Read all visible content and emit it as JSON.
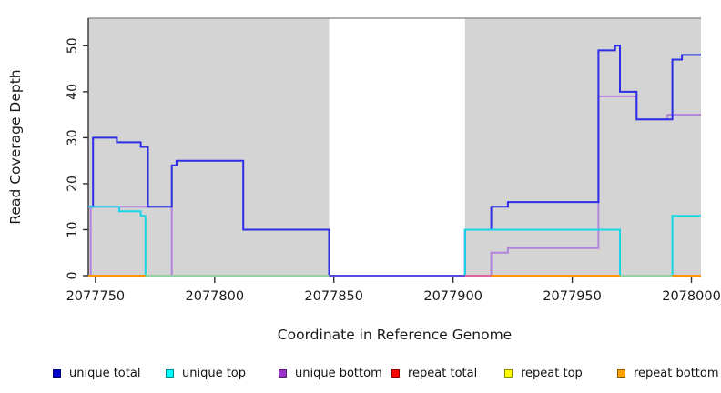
{
  "y_axis": {
    "label": "Read Coverage Depth",
    "ticks": [
      0,
      10,
      20,
      30,
      40,
      50
    ]
  },
  "x_axis": {
    "label": "Coordinate in Reference Genome",
    "ticks": [
      2077750,
      2077800,
      2077850,
      2077900,
      2077950,
      2078000
    ]
  },
  "legend": {
    "items": [
      {
        "label": "unique total",
        "color": "#0000cc"
      },
      {
        "label": "unique top",
        "color": "#00ffff"
      },
      {
        "label": "unique bottom",
        "color": "#9933cc"
      },
      {
        "label": "repeat total",
        "color": "#ff0000"
      },
      {
        "label": "repeat top",
        "color": "#ffff00"
      },
      {
        "label": "repeat bottom",
        "color": "#ffa200"
      }
    ]
  },
  "colors": {
    "plot_background_shaded": "#d4d4d4",
    "plot_background_gap": "#ffffff",
    "plot_top_border": "#808080",
    "axis_line": "#333333",
    "tick_label": "#1a1a1a"
  },
  "chart_data": {
    "type": "line",
    "step": true,
    "title": "",
    "xlabel": "Coordinate in Reference Genome",
    "ylabel": "Read Coverage Depth",
    "xlim": [
      2077747,
      2078004
    ],
    "ylim": [
      0,
      56
    ],
    "grid": false,
    "legend_position": "bottom",
    "shaded_regions": [
      {
        "x1": 2077747,
        "x2": 2077848
      },
      {
        "x1": 2077905,
        "x2": 2078004
      }
    ],
    "gap_region": {
      "x1": 2077848,
      "x2": 2077905
    },
    "series": [
      {
        "name": "repeat total",
        "color": "#ff0000",
        "steps": [
          [
            2077747,
            0
          ]
        ]
      },
      {
        "name": "repeat top",
        "color": "#ffff00",
        "steps": [
          [
            2077747,
            0
          ]
        ]
      },
      {
        "name": "repeat bottom",
        "color": "#ff9500",
        "steps": [
          [
            2077747,
            0
          ]
        ]
      },
      {
        "name": "unique bottom",
        "color": "#b183dd",
        "steps": [
          [
            2077747,
            0
          ],
          [
            2077748,
            15
          ],
          [
            2077782,
            0
          ],
          [
            2077916,
            5
          ],
          [
            2077923,
            6
          ],
          [
            2077961,
            39
          ],
          [
            2077977,
            34
          ],
          [
            2077990,
            35
          ]
        ]
      },
      {
        "name": "unique total",
        "color": "#2d2de8",
        "steps": [
          [
            2077747,
            15
          ],
          [
            2077749,
            30
          ],
          [
            2077759,
            29
          ],
          [
            2077769,
            28
          ],
          [
            2077772,
            15
          ],
          [
            2077782,
            24
          ],
          [
            2077784,
            25
          ],
          [
            2077812,
            10
          ],
          [
            2077848,
            0
          ],
          [
            2077905,
            10
          ],
          [
            2077916,
            15
          ],
          [
            2077923,
            16
          ],
          [
            2077961,
            49
          ],
          [
            2077968,
            50
          ],
          [
            2077970,
            40
          ],
          [
            2077977,
            34
          ],
          [
            2077992,
            47
          ],
          [
            2077996,
            48
          ]
        ]
      },
      {
        "name": "unique top",
        "color": "#18d6e6",
        "steps": [
          [
            2077747,
            15
          ],
          [
            2077760,
            14
          ],
          [
            2077769,
            13
          ],
          [
            2077771,
            0
          ],
          [
            2077905,
            10
          ],
          [
            2077970,
            0
          ],
          [
            2077992,
            13
          ]
        ]
      }
    ],
    "zero_line_segments": [
      {
        "x1": 2077747,
        "x2": 2077771,
        "color": "#ff9500"
      },
      {
        "x1": 2077771,
        "x2": 2077848,
        "color": "#93d0a4"
      },
      {
        "x1": 2077848,
        "x2": 2077905,
        "color": "#5a4ae2"
      },
      {
        "x1": 2077905,
        "x2": 2077916,
        "color": "#e0639a"
      },
      {
        "x1": 2077916,
        "x2": 2077970,
        "color": "#ff9500"
      },
      {
        "x1": 2077970,
        "x2": 2077992,
        "color": "#93d0a4"
      },
      {
        "x1": 2077992,
        "x2": 2078004,
        "color": "#ff9500"
      }
    ]
  }
}
